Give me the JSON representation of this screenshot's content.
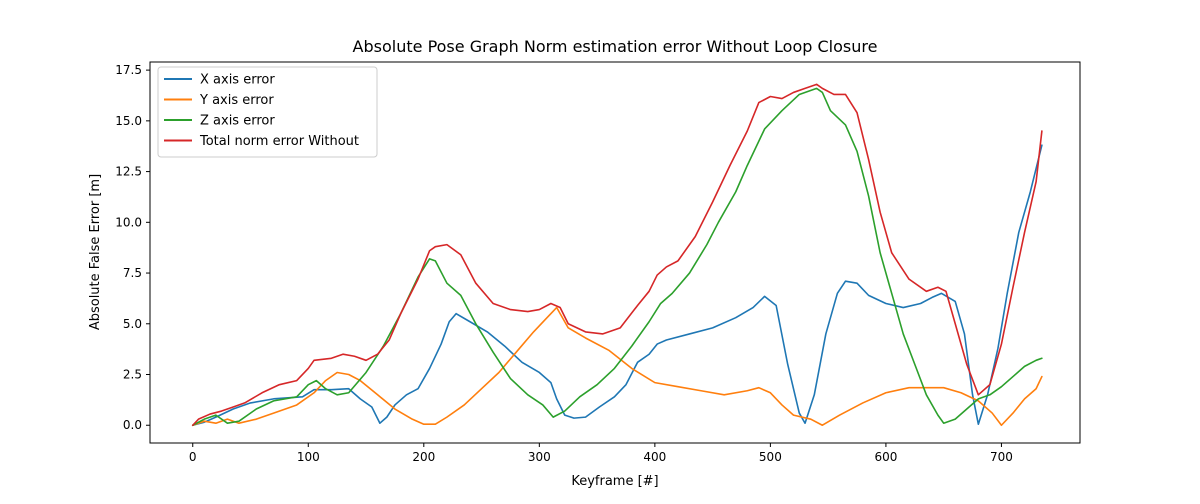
{
  "chart_data": {
    "type": "line",
    "title": "Absolute Pose Graph Norm estimation error Without Loop Closure",
    "xlabel": "Keyframe [#]",
    "ylabel": "Absolute False Error [m]",
    "xlim": [
      -37,
      768
    ],
    "ylim": [
      -0.875,
      17.9
    ],
    "xticks": [
      0,
      100,
      200,
      300,
      400,
      500,
      600,
      700
    ],
    "xtick_labels": [
      "0",
      "100",
      "200",
      "300",
      "400",
      "500",
      "600",
      "700"
    ],
    "yticks": [
      0,
      2.5,
      5,
      7.5,
      10,
      12.5,
      15,
      17.5
    ],
    "ytick_labels": [
      "0.0",
      "2.5",
      "5.0",
      "7.5",
      "10.0",
      "12.5",
      "15.0",
      "17.5"
    ],
    "grid": false,
    "legend_position": "upper-left",
    "series": [
      {
        "name": "X axis error",
        "color": "#1f77b4",
        "points": [
          [
            0,
            0
          ],
          [
            10,
            0.15
          ],
          [
            20,
            0.4
          ],
          [
            35,
            0.8
          ],
          [
            50,
            1.1
          ],
          [
            70,
            1.3
          ],
          [
            95,
            1.4
          ],
          [
            105,
            1.75
          ],
          [
            120,
            1.75
          ],
          [
            135,
            1.8
          ],
          [
            145,
            1.3
          ],
          [
            155,
            0.9
          ],
          [
            162,
            0.1
          ],
          [
            168,
            0.4
          ],
          [
            175,
            1.0
          ],
          [
            185,
            1.5
          ],
          [
            195,
            1.8
          ],
          [
            205,
            2.8
          ],
          [
            215,
            4.0
          ],
          [
            222,
            5.1
          ],
          [
            228,
            5.5
          ],
          [
            240,
            5.1
          ],
          [
            255,
            4.6
          ],
          [
            270,
            3.9
          ],
          [
            285,
            3.1
          ],
          [
            300,
            2.6
          ],
          [
            310,
            2.1
          ],
          [
            315,
            1.3
          ],
          [
            322,
            0.5
          ],
          [
            330,
            0.35
          ],
          [
            340,
            0.4
          ],
          [
            352,
            0.9
          ],
          [
            365,
            1.4
          ],
          [
            375,
            2.0
          ],
          [
            385,
            3.1
          ],
          [
            395,
            3.5
          ],
          [
            402,
            4.0
          ],
          [
            410,
            4.2
          ],
          [
            430,
            4.5
          ],
          [
            450,
            4.8
          ],
          [
            470,
            5.3
          ],
          [
            485,
            5.8
          ],
          [
            495,
            6.35
          ],
          [
            505,
            5.9
          ],
          [
            515,
            3.0
          ],
          [
            525,
            0.6
          ],
          [
            530,
            0.1
          ],
          [
            538,
            1.5
          ],
          [
            548,
            4.5
          ],
          [
            558,
            6.5
          ],
          [
            565,
            7.1
          ],
          [
            575,
            7.0
          ],
          [
            585,
            6.4
          ],
          [
            600,
            6.0
          ],
          [
            615,
            5.8
          ],
          [
            630,
            6.0
          ],
          [
            640,
            6.3
          ],
          [
            648,
            6.5
          ],
          [
            660,
            6.1
          ],
          [
            668,
            4.5
          ],
          [
            675,
            1.5
          ],
          [
            680,
            0.05
          ],
          [
            688,
            1.5
          ],
          [
            697,
            3.8
          ],
          [
            705,
            6.5
          ],
          [
            715,
            9.5
          ],
          [
            725,
            11.5
          ],
          [
            735,
            13.8
          ]
        ]
      },
      {
        "name": "Y axis error",
        "color": "#ff7f0e",
        "points": [
          [
            0,
            0
          ],
          [
            10,
            0.2
          ],
          [
            20,
            0.1
          ],
          [
            30,
            0.3
          ],
          [
            40,
            0.1
          ],
          [
            55,
            0.3
          ],
          [
            70,
            0.6
          ],
          [
            90,
            1.0
          ],
          [
            105,
            1.6
          ],
          [
            115,
            2.2
          ],
          [
            125,
            2.6
          ],
          [
            135,
            2.5
          ],
          [
            145,
            2.2
          ],
          [
            160,
            1.5
          ],
          [
            175,
            0.8
          ],
          [
            190,
            0.3
          ],
          [
            200,
            0.05
          ],
          [
            210,
            0.05
          ],
          [
            220,
            0.4
          ],
          [
            235,
            1.0
          ],
          [
            250,
            1.8
          ],
          [
            265,
            2.6
          ],
          [
            280,
            3.6
          ],
          [
            295,
            4.6
          ],
          [
            305,
            5.2
          ],
          [
            315,
            5.8
          ],
          [
            325,
            4.8
          ],
          [
            340,
            4.3
          ],
          [
            360,
            3.7
          ],
          [
            380,
            2.8
          ],
          [
            400,
            2.1
          ],
          [
            420,
            1.9
          ],
          [
            440,
            1.7
          ],
          [
            460,
            1.5
          ],
          [
            480,
            1.7
          ],
          [
            490,
            1.85
          ],
          [
            500,
            1.6
          ],
          [
            510,
            1.0
          ],
          [
            520,
            0.5
          ],
          [
            535,
            0.3
          ],
          [
            545,
            0.0
          ],
          [
            560,
            0.5
          ],
          [
            580,
            1.1
          ],
          [
            600,
            1.6
          ],
          [
            620,
            1.85
          ],
          [
            640,
            1.85
          ],
          [
            650,
            1.85
          ],
          [
            665,
            1.6
          ],
          [
            680,
            1.2
          ],
          [
            692,
            0.6
          ],
          [
            700,
            0.0
          ],
          [
            710,
            0.6
          ],
          [
            720,
            1.3
          ],
          [
            730,
            1.8
          ],
          [
            735,
            2.4
          ]
        ]
      },
      {
        "name": "Z axis error",
        "color": "#2ca02c",
        "points": [
          [
            0,
            0
          ],
          [
            10,
            0.3
          ],
          [
            20,
            0.5
          ],
          [
            30,
            0.1
          ],
          [
            40,
            0.2
          ],
          [
            55,
            0.8
          ],
          [
            70,
            1.2
          ],
          [
            90,
            1.4
          ],
          [
            100,
            2.0
          ],
          [
            107,
            2.2
          ],
          [
            115,
            1.8
          ],
          [
            125,
            1.5
          ],
          [
            135,
            1.6
          ],
          [
            150,
            2.6
          ],
          [
            165,
            3.9
          ],
          [
            180,
            5.5
          ],
          [
            195,
            7.3
          ],
          [
            205,
            8.2
          ],
          [
            210,
            8.1
          ],
          [
            220,
            7.0
          ],
          [
            232,
            6.4
          ],
          [
            245,
            5.0
          ],
          [
            260,
            3.6
          ],
          [
            275,
            2.3
          ],
          [
            290,
            1.5
          ],
          [
            303,
            1.0
          ],
          [
            312,
            0.4
          ],
          [
            322,
            0.7
          ],
          [
            335,
            1.4
          ],
          [
            350,
            2.0
          ],
          [
            365,
            2.8
          ],
          [
            380,
            3.9
          ],
          [
            395,
            5.1
          ],
          [
            405,
            6.0
          ],
          [
            415,
            6.5
          ],
          [
            430,
            7.5
          ],
          [
            445,
            8.9
          ],
          [
            455,
            10.0
          ],
          [
            470,
            11.5
          ],
          [
            480,
            12.8
          ],
          [
            495,
            14.6
          ],
          [
            510,
            15.5
          ],
          [
            525,
            16.3
          ],
          [
            540,
            16.6
          ],
          [
            545,
            16.4
          ],
          [
            552,
            15.5
          ],
          [
            565,
            14.8
          ],
          [
            575,
            13.5
          ],
          [
            585,
            11.3
          ],
          [
            595,
            8.5
          ],
          [
            605,
            6.5
          ],
          [
            615,
            4.5
          ],
          [
            625,
            3.0
          ],
          [
            635,
            1.5
          ],
          [
            645,
            0.5
          ],
          [
            650,
            0.1
          ],
          [
            660,
            0.3
          ],
          [
            670,
            0.8
          ],
          [
            680,
            1.3
          ],
          [
            690,
            1.5
          ],
          [
            700,
            1.9
          ],
          [
            710,
            2.4
          ],
          [
            720,
            2.9
          ],
          [
            730,
            3.2
          ],
          [
            735,
            3.3
          ]
        ]
      },
      {
        "name": "Total norm error Without",
        "color": "#d62728",
        "points": [
          [
            0,
            0
          ],
          [
            5,
            0.3
          ],
          [
            15,
            0.55
          ],
          [
            25,
            0.7
          ],
          [
            35,
            0.9
          ],
          [
            45,
            1.1
          ],
          [
            60,
            1.6
          ],
          [
            75,
            2.0
          ],
          [
            90,
            2.2
          ],
          [
            100,
            2.8
          ],
          [
            105,
            3.2
          ],
          [
            120,
            3.3
          ],
          [
            130,
            3.5
          ],
          [
            140,
            3.4
          ],
          [
            150,
            3.2
          ],
          [
            160,
            3.5
          ],
          [
            170,
            4.2
          ],
          [
            180,
            5.5
          ],
          [
            195,
            7.2
          ],
          [
            205,
            8.6
          ],
          [
            210,
            8.8
          ],
          [
            220,
            8.9
          ],
          [
            232,
            8.4
          ],
          [
            245,
            7.0
          ],
          [
            260,
            6.0
          ],
          [
            275,
            5.7
          ],
          [
            290,
            5.6
          ],
          [
            300,
            5.7
          ],
          [
            310,
            6.0
          ],
          [
            318,
            5.8
          ],
          [
            325,
            5.0
          ],
          [
            340,
            4.6
          ],
          [
            355,
            4.5
          ],
          [
            370,
            4.8
          ],
          [
            385,
            5.9
          ],
          [
            395,
            6.6
          ],
          [
            402,
            7.4
          ],
          [
            410,
            7.8
          ],
          [
            420,
            8.1
          ],
          [
            435,
            9.3
          ],
          [
            450,
            11.0
          ],
          [
            465,
            12.8
          ],
          [
            480,
            14.5
          ],
          [
            490,
            15.9
          ],
          [
            500,
            16.2
          ],
          [
            510,
            16.1
          ],
          [
            520,
            16.4
          ],
          [
            530,
            16.6
          ],
          [
            540,
            16.8
          ],
          [
            545,
            16.6
          ],
          [
            555,
            16.3
          ],
          [
            565,
            16.3
          ],
          [
            575,
            15.4
          ],
          [
            585,
            13.1
          ],
          [
            595,
            10.5
          ],
          [
            605,
            8.5
          ],
          [
            620,
            7.2
          ],
          [
            635,
            6.6
          ],
          [
            645,
            6.8
          ],
          [
            652,
            6.6
          ],
          [
            660,
            5.0
          ],
          [
            670,
            3.0
          ],
          [
            680,
            1.5
          ],
          [
            690,
            2.0
          ],
          [
            700,
            4.0
          ],
          [
            710,
            6.8
          ],
          [
            720,
            9.5
          ],
          [
            730,
            12.0
          ],
          [
            735,
            14.5
          ]
        ]
      }
    ]
  }
}
